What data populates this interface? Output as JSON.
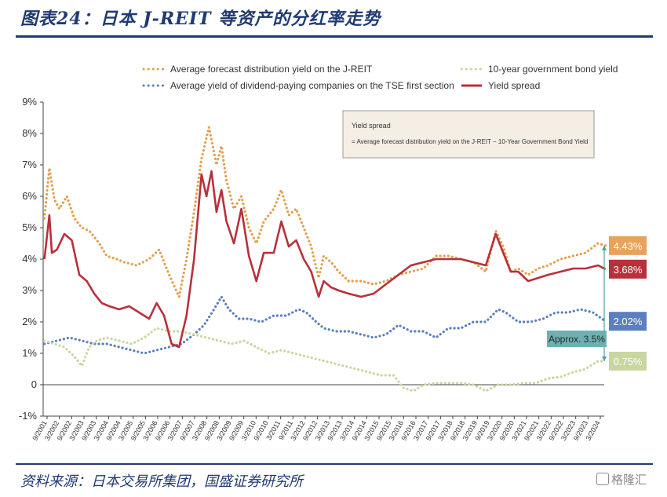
{
  "header": {
    "title": "图表24：日本 J-REIT 等资产的分红率走势"
  },
  "footer": {
    "source": "资料来源：日本交易所集团，国盛证券研究所",
    "watermark": "格隆汇"
  },
  "chart_data": {
    "type": "line",
    "ylim": [
      -1,
      9
    ],
    "yticks": [
      "9%",
      "8%",
      "7%",
      "6%",
      "5%",
      "4%",
      "3%",
      "2%",
      "1%",
      "0",
      "-1%"
    ],
    "x_labels": [
      "9/2001",
      "3/2002",
      "9/2002",
      "3/2003",
      "9/2003",
      "3/2004",
      "9/2004",
      "3/2005",
      "9/2005",
      "3/2006",
      "9/2006",
      "3/2007",
      "9/2007",
      "3/2008",
      "9/2008",
      "3/2009",
      "9/2009",
      "3/2010",
      "9/2010",
      "3/2011",
      "9/2011",
      "3/2012",
      "9/2012",
      "3/2013",
      "9/2013",
      "3/2014",
      "9/2014",
      "3/2015",
      "9/2015",
      "3/2016",
      "9/2016",
      "3/2017",
      "9/2017",
      "3/2018",
      "9/2018",
      "3/2019",
      "9/2019",
      "3/2020",
      "9/2020",
      "3/2021",
      "9/2021",
      "3/2022",
      "9/2022",
      "3/2023",
      "9/2023",
      "3/2024"
    ],
    "legend": [
      {
        "name": "Average forecast distribution yield on the J-REIT",
        "color": "#e0a050",
        "style": "dotted"
      },
      {
        "name": "Average yield of dividend-paying companies on the TSE first section",
        "color": "#5b7fbf",
        "style": "dotted"
      },
      {
        "name": "10-year government bond yield",
        "color": "#c8d6a0",
        "style": "dotted"
      },
      {
        "name": "Yield spread",
        "color": "#b8303a",
        "style": "solid"
      }
    ],
    "annotation": {
      "title": "Yield spread",
      "formula": "= Average forecast distribution yield on the J-REIT − 10-Year Government Bond Yield"
    },
    "end_labels": [
      {
        "text": "4.43%",
        "value": 4.43,
        "color": "#e8a25a"
      },
      {
        "text": "3.68%",
        "value": 3.68,
        "color": "#b8303a"
      },
      {
        "text": "2.02%",
        "value": 2.02,
        "color": "#5b7fbf"
      },
      {
        "text": "0.75%",
        "value": 0.75,
        "color": "#c8d6a0"
      }
    ],
    "spread_label": "Approx. 3.5%",
    "series": [
      {
        "name": "Average forecast distribution yield on the J-REIT",
        "color": "#e0a050",
        "style": "dotted",
        "x": [
          2001.8,
          2002.0,
          2002.2,
          2002.4,
          2002.7,
          2003.0,
          2003.3,
          2003.6,
          2004.0,
          2004.3,
          2004.7,
          2005.0,
          2005.5,
          2006.0,
          2006.4,
          2006.8,
          2007.2,
          2007.5,
          2007.8,
          2008.1,
          2008.4,
          2008.7,
          2008.9,
          2009.1,
          2009.4,
          2009.7,
          2010.0,
          2010.3,
          2010.6,
          2011.0,
          2011.3,
          2011.6,
          2011.9,
          2012.2,
          2012.5,
          2012.8,
          2013.0,
          2013.3,
          2013.6,
          2014.0,
          2014.5,
          2015.0,
          2015.5,
          2016.0,
          2016.5,
          2017.0,
          2017.5,
          2018.0,
          2018.5,
          2019.0,
          2019.5,
          2019.9,
          2020.2,
          2020.5,
          2020.8,
          2021.2,
          2021.6,
          2022.0,
          2022.5,
          2023.0,
          2023.5,
          2024.0,
          2024.3
        ],
        "y": [
          5.3,
          6.9,
          5.9,
          5.6,
          6.0,
          5.3,
          5.0,
          4.9,
          4.5,
          4.1,
          4.0,
          3.9,
          3.8,
          4.0,
          4.3,
          3.5,
          2.8,
          4.0,
          5.5,
          7.2,
          8.2,
          7.0,
          7.6,
          6.5,
          5.6,
          6.0,
          5.0,
          4.5,
          5.2,
          5.6,
          6.2,
          5.4,
          5.6,
          5.0,
          4.4,
          3.4,
          4.1,
          3.9,
          3.6,
          3.3,
          3.3,
          3.2,
          3.3,
          3.5,
          3.6,
          3.7,
          4.1,
          4.1,
          4.0,
          3.9,
          3.6,
          4.9,
          4.4,
          3.6,
          3.7,
          3.5,
          3.7,
          3.8,
          4.0,
          4.1,
          4.2,
          4.5,
          4.43
        ]
      },
      {
        "name": "Average yield of dividend-paying companies on the TSE first section",
        "color": "#5b7fbf",
        "style": "dotted",
        "x": [
          2001.8,
          2002.3,
          2002.8,
          2003.3,
          2003.8,
          2004.3,
          2004.8,
          2005.3,
          2005.8,
          2006.3,
          2006.8,
          2007.3,
          2007.8,
          2008.2,
          2008.6,
          2008.9,
          2009.2,
          2009.6,
          2010.0,
          2010.5,
          2011.0,
          2011.5,
          2012.0,
          2012.3,
          2012.7,
          2013.0,
          2013.5,
          2014.0,
          2014.5,
          2015.0,
          2015.5,
          2016.0,
          2016.5,
          2017.0,
          2017.5,
          2018.0,
          2018.5,
          2019.0,
          2019.5,
          2020.0,
          2020.3,
          2020.8,
          2021.3,
          2021.8,
          2022.3,
          2022.8,
          2023.3,
          2023.8,
          2024.3
        ],
        "y": [
          1.3,
          1.4,
          1.5,
          1.4,
          1.3,
          1.3,
          1.2,
          1.1,
          1.0,
          1.1,
          1.2,
          1.3,
          1.6,
          1.9,
          2.4,
          2.8,
          2.4,
          2.1,
          2.1,
          2.0,
          2.2,
          2.2,
          2.4,
          2.3,
          2.0,
          1.8,
          1.7,
          1.7,
          1.6,
          1.5,
          1.6,
          1.9,
          1.7,
          1.7,
          1.5,
          1.8,
          1.8,
          2.0,
          2.0,
          2.4,
          2.3,
          2.0,
          2.0,
          2.1,
          2.3,
          2.3,
          2.4,
          2.3,
          2.02
        ]
      },
      {
        "name": "10-year government bond yield",
        "color": "#c8d6a0",
        "style": "dotted",
        "x": [
          2001.8,
          2002.2,
          2002.6,
          2003.0,
          2003.3,
          2003.6,
          2003.9,
          2004.3,
          2004.8,
          2005.3,
          2005.8,
          2006.3,
          2006.8,
          2007.3,
          2007.8,
          2008.3,
          2008.8,
          2009.3,
          2009.8,
          2010.3,
          2010.8,
          2011.3,
          2011.8,
          2012.3,
          2012.8,
          2013.3,
          2013.8,
          2014.3,
          2014.8,
          2015.3,
          2015.8,
          2016.2,
          2016.6,
          2017.0,
          2017.5,
          2018.0,
          2018.5,
          2019.0,
          2019.5,
          2020.0,
          2020.5,
          2021.0,
          2021.5,
          2022.0,
          2022.5,
          2023.0,
          2023.5,
          2024.0,
          2024.3
        ],
        "y": [
          1.4,
          1.3,
          1.2,
          0.9,
          0.6,
          1.2,
          1.4,
          1.5,
          1.4,
          1.3,
          1.5,
          1.8,
          1.7,
          1.7,
          1.6,
          1.5,
          1.4,
          1.3,
          1.4,
          1.2,
          1.0,
          1.1,
          1.0,
          0.9,
          0.8,
          0.7,
          0.6,
          0.5,
          0.4,
          0.3,
          0.3,
          -0.1,
          -0.2,
          0.0,
          0.05,
          0.05,
          0.05,
          0.0,
          -0.2,
          0.0,
          0.0,
          0.05,
          0.05,
          0.2,
          0.25,
          0.4,
          0.5,
          0.75,
          0.75
        ]
      },
      {
        "name": "Yield spread",
        "color": "#b8303a",
        "style": "solid",
        "x": [
          2001.8,
          2002.0,
          2002.1,
          2002.3,
          2002.6,
          2002.9,
          2003.2,
          2003.5,
          2003.8,
          2004.1,
          2004.4,
          2004.8,
          2005.2,
          2005.6,
          2006.0,
          2006.3,
          2006.6,
          2006.9,
          2007.2,
          2007.5,
          2007.8,
          2008.1,
          2008.3,
          2008.5,
          2008.7,
          2008.9,
          2009.1,
          2009.4,
          2009.7,
          2010.0,
          2010.3,
          2010.6,
          2011.0,
          2011.3,
          2011.6,
          2011.9,
          2012.2,
          2012.5,
          2012.8,
          2013.0,
          2013.3,
          2013.6,
          2014.0,
          2014.5,
          2015.0,
          2015.5,
          2016.0,
          2016.5,
          2017.0,
          2017.5,
          2018.0,
          2018.5,
          2019.0,
          2019.5,
          2019.9,
          2020.2,
          2020.5,
          2020.8,
          2021.2,
          2021.6,
          2022.0,
          2022.5,
          2023.0,
          2023.5,
          2024.0,
          2024.3
        ],
        "y": [
          4.0,
          5.4,
          4.2,
          4.3,
          4.8,
          4.6,
          3.5,
          3.3,
          2.9,
          2.6,
          2.5,
          2.4,
          2.5,
          2.3,
          2.1,
          2.6,
          2.2,
          1.3,
          1.2,
          2.2,
          4.0,
          6.7,
          6.0,
          6.8,
          5.5,
          6.2,
          5.2,
          4.5,
          5.6,
          4.1,
          3.3,
          4.2,
          4.2,
          5.2,
          4.4,
          4.6,
          4.0,
          3.6,
          2.8,
          3.3,
          3.1,
          3.0,
          2.9,
          2.8,
          2.9,
          3.2,
          3.5,
          3.8,
          3.9,
          4.0,
          4.0,
          4.0,
          3.9,
          3.8,
          4.8,
          4.2,
          3.6,
          3.6,
          3.3,
          3.4,
          3.5,
          3.6,
          3.7,
          3.7,
          3.8,
          3.68
        ]
      }
    ]
  }
}
